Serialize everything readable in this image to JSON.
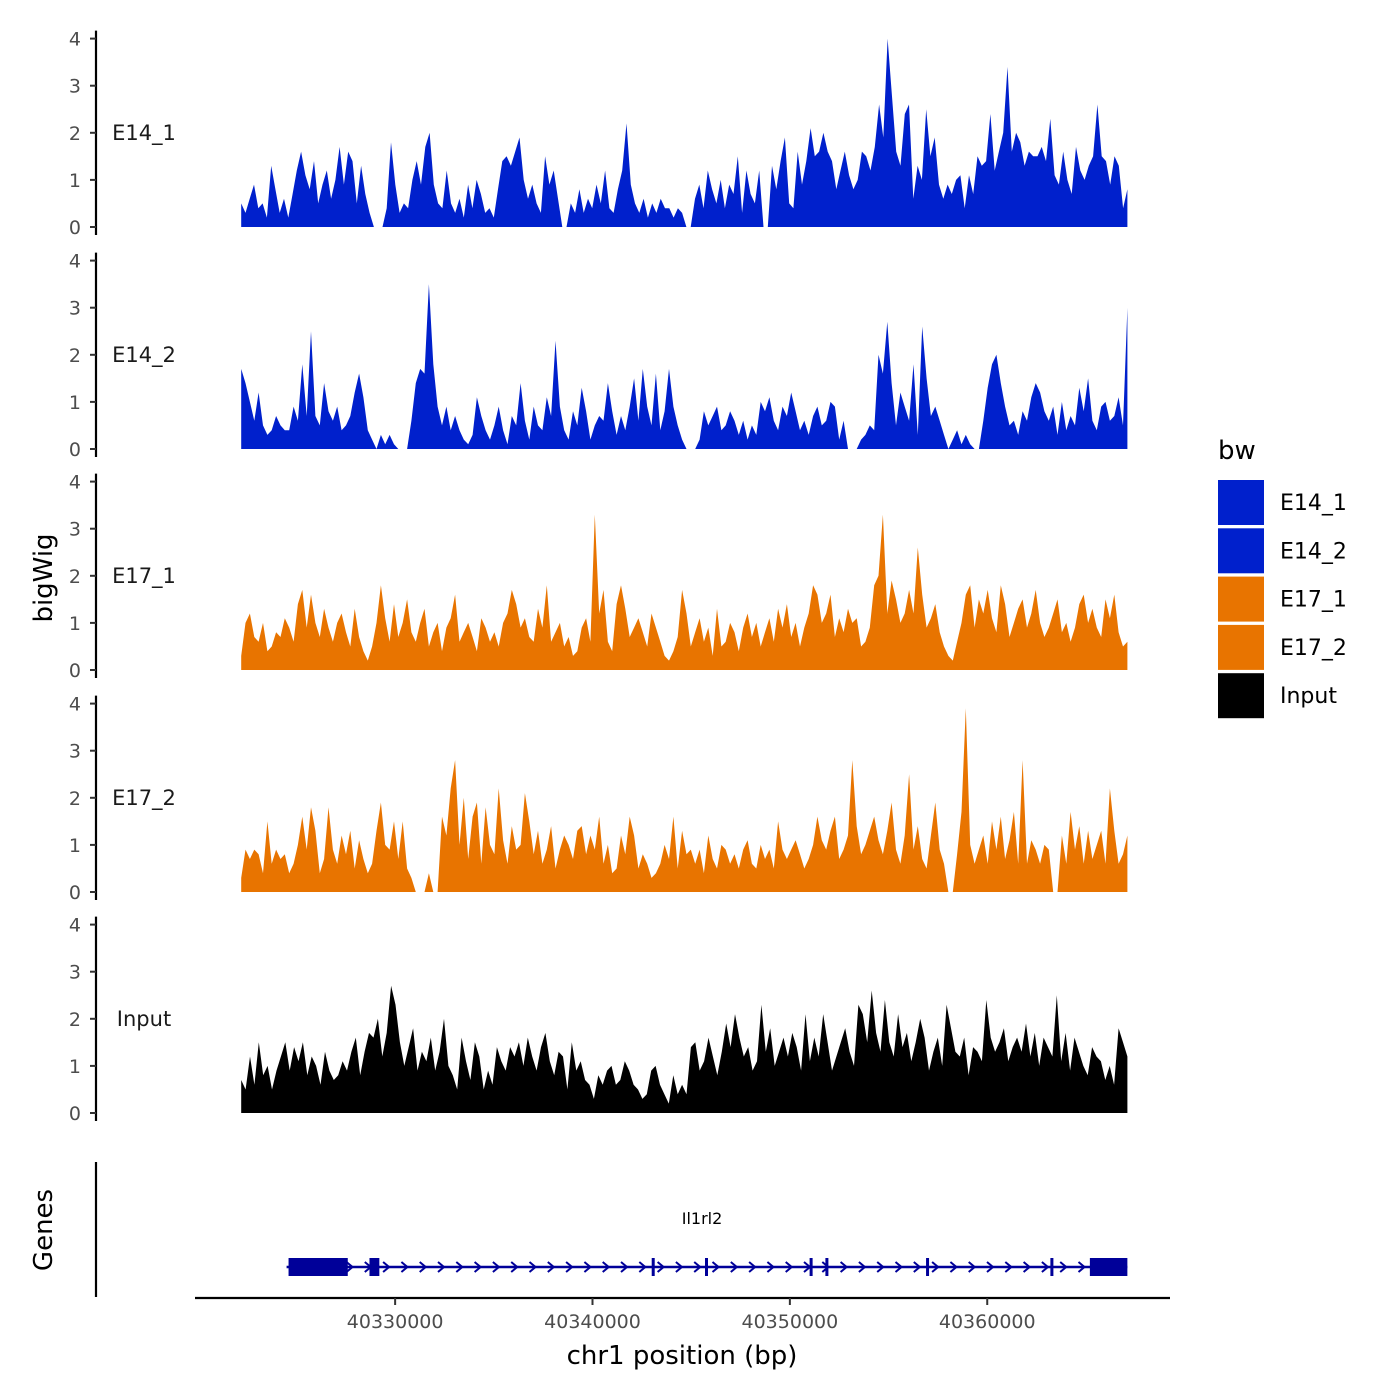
{
  "chart_data": {
    "type": "area",
    "y_axis_title": "bigWig",
    "x_axis_title": "chr1 position (bp)",
    "x_ticks": [
      "40330000",
      "40340000",
      "40350000",
      "40360000"
    ],
    "x_tick_values": [
      40330000,
      40340000,
      40350000,
      40360000
    ],
    "x_range": [
      40319860,
      40369260
    ],
    "data_x_range": [
      40322200,
      40367100
    ],
    "y_ticks": [
      "0",
      "1",
      "2",
      "3",
      "4"
    ],
    "ylim": [
      0,
      4
    ],
    "legend": {
      "title": "bw",
      "placement": "right",
      "entries": [
        {
          "label": "E14_1",
          "color": "#0020CC"
        },
        {
          "label": "E14_2",
          "color": "#0020CC"
        },
        {
          "label": "E17_1",
          "color": "#E87400"
        },
        {
          "label": "E17_2",
          "color": "#E87400"
        },
        {
          "label": "Input",
          "color": "#000000"
        }
      ]
    },
    "series": [
      {
        "name": "E14_1",
        "color": "#0020CC",
        "values": [
          0.5,
          0.3,
          0.6,
          0.9,
          0.4,
          0.5,
          0.2,
          1.3,
          0.8,
          0.3,
          0.6,
          0.2,
          0.7,
          1.2,
          1.6,
          1.1,
          0.8,
          1.4,
          0.5,
          0.9,
          1.2,
          0.6,
          1.0,
          1.7,
          0.9,
          1.6,
          1.4,
          0.5,
          1.3,
          0.7,
          0.3,
          0.0,
          0.0,
          0.0,
          0.4,
          1.8,
          0.9,
          0.3,
          0.5,
          0.4,
          1.0,
          1.4,
          0.9,
          1.7,
          2.0,
          0.9,
          0.5,
          0.4,
          1.2,
          0.5,
          0.3,
          0.6,
          0.2,
          0.9,
          0.4,
          1.0,
          0.7,
          0.3,
          0.4,
          0.2,
          0.8,
          1.4,
          1.5,
          1.3,
          1.6,
          1.9,
          1.0,
          0.6,
          0.9,
          0.5,
          0.3,
          1.5,
          0.9,
          1.2,
          0.6,
          0.0,
          0.0,
          0.5,
          0.3,
          0.8,
          0.3,
          0.6,
          0.4,
          0.9,
          0.5,
          1.2,
          0.4,
          0.3,
          0.8,
          1.2,
          2.2,
          0.9,
          0.5,
          0.3,
          0.6,
          0.2,
          0.5,
          0.3,
          0.6,
          0.4,
          0.4,
          0.2,
          0.4,
          0.3,
          0.0,
          0.0,
          0.6,
          0.9,
          0.4,
          1.2,
          0.8,
          0.5,
          1.0,
          0.4,
          0.9,
          0.7,
          1.5,
          0.3,
          1.2,
          0.7,
          0.5,
          1.2,
          0.0,
          0.0,
          1.3,
          0.8,
          1.4,
          1.9,
          0.5,
          0.4,
          1.6,
          0.9,
          1.4,
          2.1,
          1.5,
          1.6,
          2.0,
          1.6,
          1.4,
          0.8,
          1.2,
          1.6,
          1.1,
          0.8,
          1.0,
          1.6,
          1.5,
          1.2,
          1.7,
          2.6,
          1.9,
          4.0,
          2.8,
          1.6,
          1.3,
          2.4,
          2.6,
          0.6,
          1.3,
          1.0,
          2.5,
          1.5,
          1.9,
          0.9,
          0.6,
          0.9,
          0.7,
          1.0,
          1.1,
          0.4,
          1.1,
          0.7,
          1.5,
          1.3,
          1.4,
          2.4,
          1.2,
          1.6,
          2.0,
          3.4,
          1.6,
          2.0,
          1.8,
          1.3,
          1.6,
          1.5,
          1.5,
          1.7,
          1.4,
          2.3,
          1.1,
          0.9,
          1.6,
          1.0,
          0.7,
          1.7,
          1.2,
          1.0,
          1.3,
          1.5,
          2.6,
          1.5,
          1.4,
          0.9,
          1.5,
          1.3,
          0.4,
          0.8
        ]
      },
      {
        "name": "E14_2",
        "color": "#0020CC",
        "values": [
          1.7,
          1.4,
          1.0,
          0.6,
          1.2,
          0.5,
          0.3,
          0.4,
          0.7,
          0.5,
          0.4,
          0.4,
          0.9,
          0.6,
          1.8,
          0.7,
          2.5,
          0.7,
          0.5,
          1.4,
          0.8,
          0.6,
          0.9,
          0.4,
          0.5,
          0.7,
          1.2,
          1.6,
          1.1,
          0.4,
          0.2,
          0.0,
          0.3,
          0.1,
          0.3,
          0.1,
          0.0,
          0.0,
          0.0,
          0.6,
          1.4,
          1.7,
          1.6,
          3.5,
          1.8,
          0.9,
          0.5,
          0.9,
          0.4,
          0.7,
          0.4,
          0.2,
          0.1,
          0.3,
          1.1,
          0.7,
          0.4,
          0.2,
          0.5,
          0.9,
          0.4,
          0.1,
          0.7,
          0.5,
          1.4,
          0.6,
          0.2,
          0.9,
          0.5,
          0.4,
          1.1,
          0.7,
          2.3,
          0.9,
          0.4,
          0.2,
          0.8,
          0.5,
          1.3,
          0.8,
          0.2,
          0.5,
          0.7,
          0.6,
          1.4,
          0.8,
          0.3,
          0.7,
          0.4,
          0.9,
          1.5,
          0.6,
          1.7,
          0.9,
          0.5,
          1.6,
          0.4,
          0.8,
          1.7,
          0.9,
          0.5,
          0.2,
          0.0,
          0.0,
          0.0,
          0.2,
          0.8,
          0.5,
          0.7,
          0.9,
          0.4,
          0.5,
          0.8,
          0.6,
          0.3,
          0.6,
          0.2,
          0.5,
          0.3,
          1.0,
          0.8,
          1.1,
          0.6,
          0.4,
          0.9,
          0.7,
          1.2,
          0.8,
          0.4,
          0.6,
          0.3,
          0.7,
          0.9,
          0.5,
          0.6,
          1.0,
          0.9,
          0.2,
          0.6,
          0.0,
          0.0,
          0.0,
          0.2,
          0.3,
          0.5,
          0.4,
          2.0,
          1.6,
          2.7,
          1.4,
          0.5,
          1.2,
          0.9,
          0.6,
          1.8,
          0.3,
          2.6,
          1.5,
          0.7,
          0.9,
          0.6,
          0.3,
          0.0,
          0.2,
          0.4,
          0.1,
          0.3,
          0.1,
          0.0,
          0.0,
          0.6,
          1.3,
          1.8,
          2.0,
          1.4,
          0.9,
          0.5,
          0.6,
          0.3,
          0.8,
          0.6,
          1.1,
          1.4,
          1.2,
          0.8,
          0.6,
          0.9,
          0.3,
          1.0,
          0.4,
          0.7,
          0.5,
          1.3,
          0.8,
          1.5,
          0.6,
          0.4,
          0.9,
          1.0,
          0.6,
          0.7,
          1.1,
          0.5,
          3.0
        ]
      },
      {
        "name": "E17_1",
        "color": "#E87400",
        "values": [
          0.3,
          1.0,
          1.2,
          0.7,
          0.6,
          1.0,
          0.4,
          0.5,
          0.8,
          0.7,
          1.1,
          0.9,
          0.6,
          1.4,
          1.7,
          0.9,
          1.6,
          1.0,
          0.7,
          1.3,
          0.9,
          0.6,
          1.0,
          1.2,
          0.8,
          0.5,
          1.3,
          0.7,
          0.4,
          0.2,
          0.5,
          1.0,
          1.8,
          1.1,
          0.6,
          1.4,
          0.7,
          1.0,
          1.5,
          0.8,
          0.6,
          1.0,
          1.3,
          0.5,
          0.8,
          1.0,
          0.4,
          0.9,
          1.1,
          1.6,
          0.6,
          0.8,
          1.0,
          0.7,
          0.4,
          1.1,
          0.9,
          0.6,
          0.8,
          0.5,
          1.0,
          1.2,
          1.7,
          1.4,
          0.9,
          1.1,
          0.7,
          0.6,
          1.3,
          0.9,
          1.8,
          0.6,
          0.8,
          1.0,
          0.5,
          0.7,
          0.3,
          0.4,
          0.9,
          1.1,
          0.6,
          3.3,
          1.2,
          1.7,
          0.6,
          0.4,
          1.4,
          1.8,
          1.3,
          0.7,
          0.9,
          1.1,
          0.8,
          0.5,
          1.2,
          0.9,
          0.6,
          0.3,
          0.2,
          0.4,
          0.7,
          1.7,
          1.2,
          0.5,
          0.8,
          1.1,
          0.6,
          0.9,
          0.3,
          1.3,
          0.5,
          0.6,
          1.0,
          0.8,
          0.4,
          0.9,
          1.2,
          0.7,
          1.0,
          0.5,
          0.8,
          1.1,
          0.6,
          1.3,
          0.9,
          1.4,
          0.7,
          1.0,
          0.5,
          0.9,
          1.2,
          1.8,
          1.6,
          1.0,
          1.2,
          1.6,
          0.7,
          1.1,
          0.8,
          1.3,
          1.0,
          1.1,
          0.5,
          0.6,
          0.9,
          1.8,
          2.0,
          3.3,
          1.2,
          1.9,
          1.5,
          1.0,
          1.2,
          1.7,
          1.2,
          2.6,
          1.6,
          0.9,
          1.1,
          1.4,
          0.8,
          0.5,
          0.3,
          0.2,
          0.6,
          1.0,
          1.6,
          1.8,
          0.9,
          1.5,
          1.2,
          1.7,
          1.1,
          0.8,
          1.8,
          1.4,
          0.7,
          1.0,
          1.3,
          1.5,
          0.9,
          1.2,
          1.7,
          1.0,
          0.7,
          0.9,
          1.2,
          1.5,
          0.8,
          1.0,
          0.6,
          0.9,
          1.4,
          1.6,
          1.0,
          1.3,
          0.9,
          0.7,
          1.5,
          1.1,
          1.6,
          0.8,
          0.5,
          0.6
        ]
      },
      {
        "name": "E17_2",
        "color": "#E87400",
        "values": [
          0.3,
          0.9,
          0.7,
          0.9,
          0.8,
          0.4,
          1.5,
          0.6,
          0.9,
          0.7,
          0.8,
          0.4,
          0.6,
          1.0,
          1.6,
          0.9,
          1.8,
          1.3,
          0.4,
          0.7,
          1.8,
          0.9,
          0.6,
          1.2,
          0.8,
          1.3,
          0.5,
          1.1,
          0.7,
          0.4,
          0.6,
          1.3,
          1.9,
          1.0,
          0.9,
          1.5,
          0.7,
          1.5,
          0.5,
          0.3,
          0.0,
          0.0,
          0.0,
          0.4,
          0.0,
          0.0,
          1.6,
          1.2,
          2.2,
          2.8,
          1.0,
          2.0,
          0.7,
          1.6,
          1.9,
          0.6,
          1.8,
          1.0,
          0.8,
          2.2,
          1.1,
          0.6,
          1.4,
          0.9,
          1.0,
          2.1,
          1.5,
          0.8,
          1.3,
          0.6,
          0.9,
          1.4,
          0.5,
          0.9,
          1.2,
          1.0,
          0.7,
          1.3,
          1.4,
          0.8,
          1.2,
          0.9,
          1.6,
          0.6,
          1.0,
          0.4,
          0.5,
          1.2,
          0.8,
          1.6,
          1.2,
          0.5,
          0.8,
          0.6,
          0.3,
          0.4,
          0.6,
          1.0,
          0.7,
          1.6,
          0.5,
          1.3,
          0.8,
          0.9,
          0.6,
          0.9,
          0.4,
          1.2,
          0.7,
          0.5,
          1.0,
          0.9,
          0.6,
          0.8,
          0.5,
          0.9,
          1.1,
          0.6,
          0.5,
          1.0,
          0.7,
          0.9,
          0.5,
          1.5,
          0.9,
          0.7,
          0.9,
          1.1,
          0.8,
          0.5,
          0.7,
          1.0,
          1.6,
          1.1,
          0.9,
          1.3,
          1.6,
          0.7,
          0.9,
          1.2,
          2.8,
          1.4,
          0.8,
          1.0,
          1.3,
          1.6,
          1.1,
          0.8,
          1.3,
          1.9,
          0.9,
          0.6,
          1.2,
          2.5,
          0.9,
          1.4,
          0.7,
          0.5,
          1.2,
          1.9,
          0.9,
          0.6,
          0.0,
          0.0,
          0.8,
          1.7,
          3.9,
          1.0,
          0.6,
          0.9,
          1.2,
          0.6,
          1.5,
          0.9,
          1.6,
          0.7,
          1.1,
          1.7,
          0.6,
          2.8,
          0.6,
          1.1,
          0.9,
          0.6,
          1.0,
          0.9,
          0.0,
          0.0,
          1.2,
          0.6,
          1.7,
          0.9,
          1.4,
          0.6,
          1.3,
          0.7,
          1.0,
          1.3,
          0.6,
          2.2,
          1.3,
          0.6,
          0.8,
          1.2
        ]
      },
      {
        "name": "Input",
        "color": "#000000",
        "values": [
          0.7,
          0.5,
          1.2,
          0.6,
          1.5,
          0.8,
          1.0,
          0.5,
          0.9,
          1.2,
          1.5,
          0.9,
          1.4,
          1.1,
          1.5,
          0.8,
          1.2,
          1.0,
          0.6,
          1.3,
          0.9,
          0.7,
          0.8,
          1.1,
          0.9,
          1.3,
          1.6,
          0.8,
          1.3,
          1.7,
          1.6,
          2.0,
          1.2,
          1.7,
          2.7,
          2.3,
          1.5,
          1.0,
          1.4,
          1.8,
          0.9,
          1.3,
          1.1,
          1.6,
          0.9,
          1.3,
          2.0,
          1.0,
          0.8,
          0.5,
          1.6,
          1.1,
          0.7,
          1.5,
          1.2,
          0.5,
          0.9,
          0.6,
          1.4,
          1.1,
          0.9,
          1.4,
          1.2,
          1.5,
          1.0,
          1.6,
          1.2,
          0.9,
          1.4,
          1.7,
          1.1,
          0.8,
          1.3,
          1.2,
          0.5,
          1.5,
          0.9,
          1.1,
          0.7,
          0.6,
          0.3,
          0.8,
          0.6,
          0.9,
          1.0,
          0.6,
          0.7,
          1.1,
          0.9,
          0.6,
          0.5,
          0.3,
          0.4,
          0.9,
          1.0,
          0.6,
          0.4,
          0.2,
          0.8,
          0.4,
          0.6,
          0.4,
          1.4,
          1.5,
          0.9,
          1.1,
          1.6,
          1.2,
          0.8,
          1.3,
          1.9,
          1.4,
          2.1,
          1.6,
          1.2,
          1.4,
          0.9,
          1.1,
          2.3,
          1.3,
          1.8,
          1.0,
          1.3,
          1.6,
          1.2,
          1.7,
          1.4,
          0.9,
          2.1,
          1.1,
          1.6,
          1.2,
          2.1,
          1.5,
          0.9,
          1.2,
          1.5,
          1.8,
          1.3,
          1.0,
          2.3,
          2.1,
          1.5,
          2.6,
          1.7,
          1.3,
          2.4,
          1.5,
          1.2,
          2.1,
          1.4,
          1.7,
          1.1,
          1.5,
          2.0,
          1.6,
          0.9,
          1.3,
          1.6,
          1.0,
          2.3,
          1.8,
          1.3,
          1.2,
          1.6,
          0.8,
          1.4,
          1.3,
          1.1,
          2.4,
          1.6,
          1.3,
          1.5,
          1.8,
          1.1,
          1.4,
          1.6,
          1.3,
          1.9,
          1.2,
          1.7,
          1.0,
          1.6,
          1.4,
          1.2,
          2.5,
          1.1,
          1.7,
          0.9,
          1.6,
          1.3,
          1.0,
          0.8,
          1.4,
          1.2,
          1.1,
          0.7,
          1.0,
          0.6,
          1.8,
          1.5,
          1.2
        ]
      }
    ],
    "genes_panel": {
      "title": "Genes",
      "gene": {
        "name": "Il1rl2",
        "strand": "+",
        "start": 40324500,
        "end": 40367100,
        "exons": [
          [
            40324600,
            40327600
          ],
          [
            40328700,
            40329200
          ],
          [
            40343000,
            40343100
          ],
          [
            40345700,
            40345800
          ],
          [
            40351000,
            40351100
          ],
          [
            40351800,
            40351900
          ],
          [
            40356900,
            40357000
          ],
          [
            40363200,
            40363300
          ],
          [
            40365200,
            40367100
          ]
        ]
      }
    }
  }
}
